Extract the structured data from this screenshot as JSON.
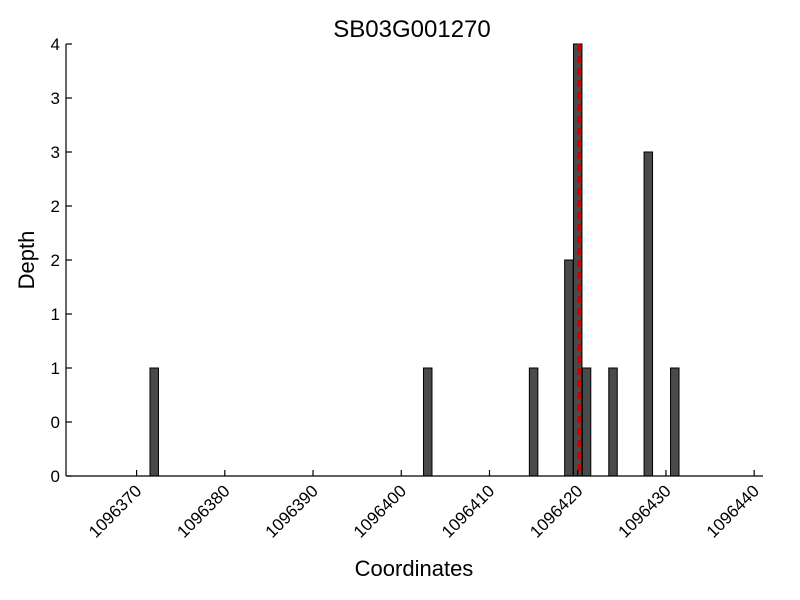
{
  "chart_data": {
    "type": "bar",
    "title": "SB03G001270",
    "xlabel": "Coordinates",
    "ylabel": "Depth",
    "xlim": [
      1096362,
      1096441
    ],
    "ylim": [
      0,
      4
    ],
    "x_ticks": [
      1096370,
      1096380,
      1096390,
      1096400,
      1096410,
      1096420,
      1096430,
      1096440
    ],
    "x_tick_labels": [
      "1096370",
      "1096380",
      "1096390",
      "1096400",
      "1096410",
      "1096420",
      "1096430",
      "1096440"
    ],
    "y_ticks": [
      0,
      0.5,
      1,
      1.5,
      2,
      2.5,
      3,
      3.5,
      4
    ],
    "y_tick_labels": [
      "0",
      "0",
      "1",
      "1",
      "2",
      "2",
      "3",
      "3",
      "4"
    ],
    "bar_color": "#4a4a4a",
    "series": [
      {
        "x": [
          1096372,
          1096403,
          1096415,
          1096419,
          1096420,
          1096421,
          1096424,
          1096428,
          1096431
        ],
        "values": [
          1,
          1,
          1,
          2,
          4,
          1,
          1,
          3,
          1
        ]
      }
    ],
    "marker_line": {
      "x": 1096420,
      "color": "#cc0000",
      "style": "dashed"
    },
    "grid": false,
    "legend": "none"
  }
}
